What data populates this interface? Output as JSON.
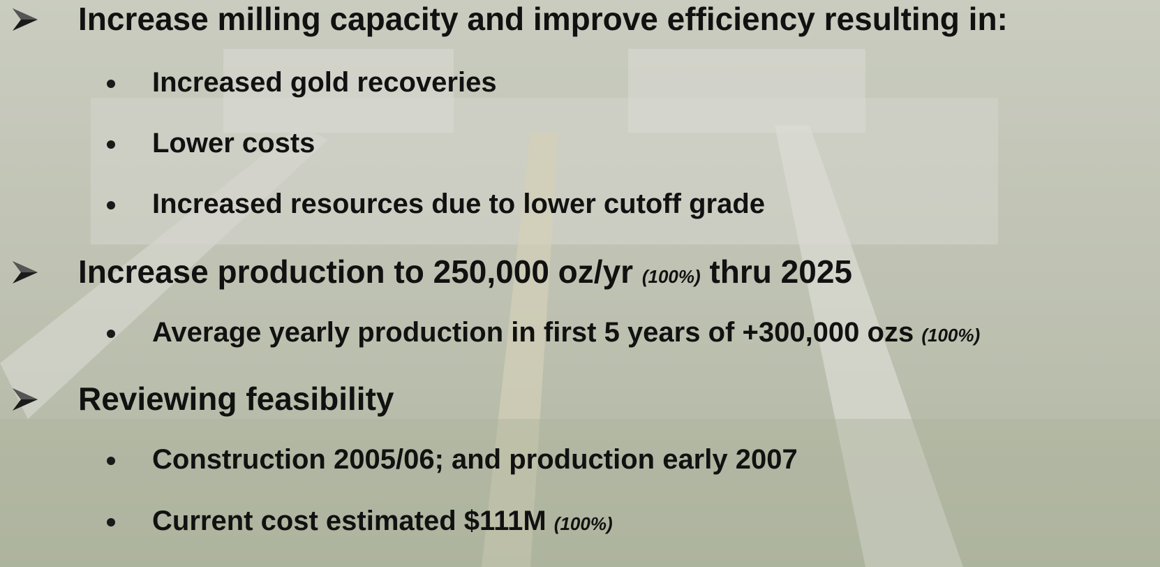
{
  "items": [
    {
      "text": "Increase milling capacity and improve efficiency resulting in:",
      "subitems": [
        {
          "text": "Increased gold recoveries"
        },
        {
          "text": "Lower costs"
        },
        {
          "text": "Increased resources due to lower cutoff grade"
        }
      ]
    },
    {
      "text": "Increase production to 250,000 oz/yr",
      "note": "(100%)",
      "tail": "thru 2025",
      "subitems": [
        {
          "text": "Average yearly production in first 5 years of +300,000 ozs",
          "note": "(100%)"
        }
      ]
    },
    {
      "text": "Reviewing feasibility",
      "subitems": [
        {
          "text": "Construction 2005/06; and production early 2007"
        },
        {
          "text": "Current cost estimated $111M",
          "note": "(100%)"
        }
      ]
    }
  ]
}
